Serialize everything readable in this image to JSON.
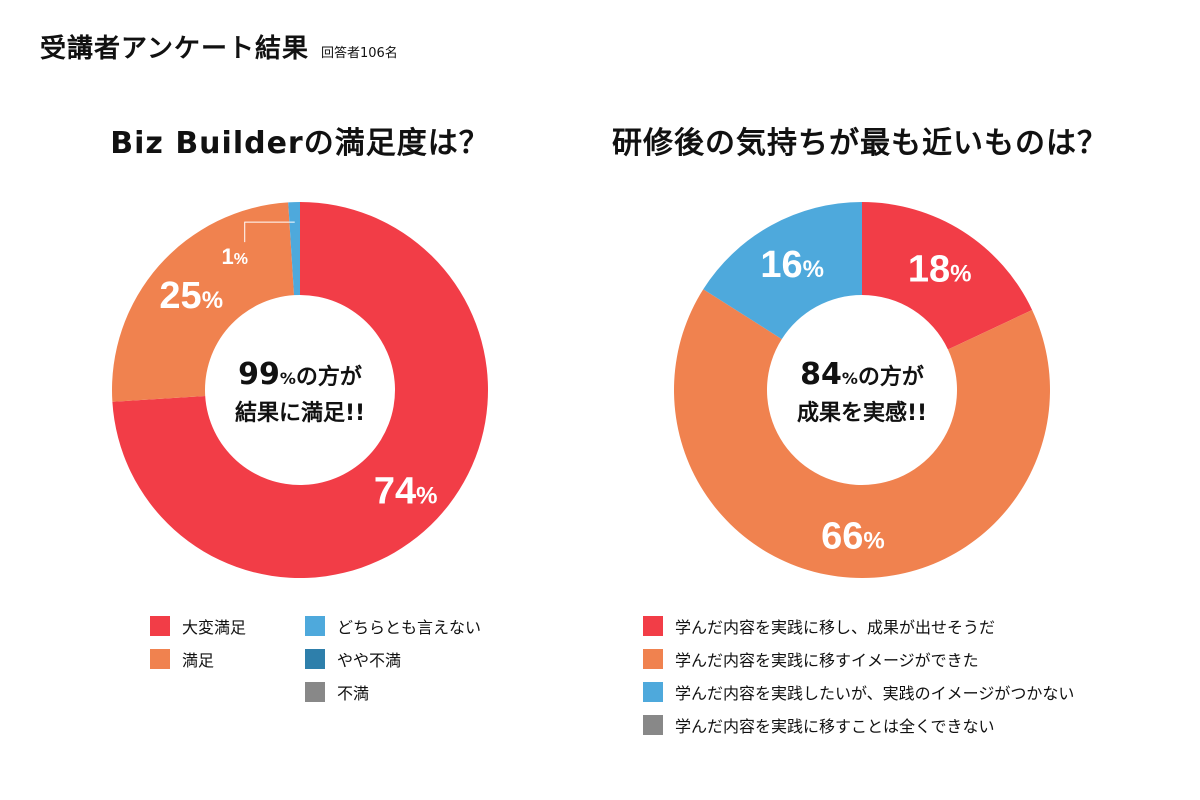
{
  "header": {
    "title": "受講者アンケート結果",
    "subtitle": "回答者106名"
  },
  "colors": {
    "red": "#f23d47",
    "orange": "#f0824f",
    "light_blue": "#4ea9dc",
    "dark_blue": "#2e7fab",
    "gray": "#888888"
  },
  "chart_data": [
    {
      "type": "pie",
      "title": "Biz Builderの満足度は？",
      "center_text": {
        "value": "99",
        "unit": "%",
        "line1_suffix": "の方が",
        "line2": "結果に満足!!"
      },
      "series": [
        {
          "name": "大変満足",
          "value": 74,
          "label_value": "74",
          "color": "#f23d47"
        },
        {
          "name": "満足",
          "value": 25,
          "label_value": "25",
          "color": "#f0824f"
        },
        {
          "name": "どちらとも言えない",
          "value": 1,
          "label_value": "1",
          "color": "#4ea9dc"
        },
        {
          "name": "やや不満",
          "value": 0,
          "label_value": "",
          "color": "#2e7fab"
        },
        {
          "name": "不満",
          "value": 0,
          "label_value": "",
          "color": "#888888"
        }
      ]
    },
    {
      "type": "pie",
      "title": "研修後の気持ちが最も近いものは？",
      "center_text": {
        "value": "84",
        "unit": "%",
        "line1_suffix": "の方が",
        "line2": "成果を実感!!"
      },
      "series": [
        {
          "name": "学んだ内容を実践に移し、成果が出せそうだ",
          "value": 18,
          "label_value": "18",
          "color": "#f23d47"
        },
        {
          "name": "学んだ内容を実践に移すイメージができた",
          "value": 66,
          "label_value": "66",
          "color": "#f0824f"
        },
        {
          "name": "学んだ内容を実践したいが、実践のイメージがつかない",
          "value": 16,
          "label_value": "16",
          "color": "#4ea9dc"
        },
        {
          "name": "学んだ内容を実践に移すことは全くできない",
          "value": 0,
          "label_value": "",
          "color": "#888888"
        }
      ]
    }
  ],
  "percent_sign": "%"
}
